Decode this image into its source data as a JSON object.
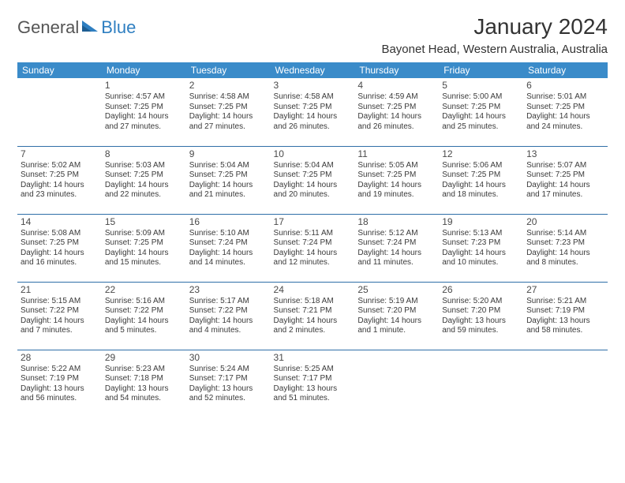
{
  "brand": {
    "part1": "General",
    "part2": "Blue"
  },
  "header": {
    "month_title": "January 2024",
    "location": "Bayonet Head, Western Australia, Australia"
  },
  "colors": {
    "header_bg": "#3a8bc9",
    "header_text": "#ffffff",
    "row_divider": "#2f6fa8",
    "body_text": "#3a3a3a",
    "brand_accent": "#2f7fc1"
  },
  "day_headers": [
    "Sunday",
    "Monday",
    "Tuesday",
    "Wednesday",
    "Thursday",
    "Friday",
    "Saturday"
  ],
  "weeks": [
    [
      null,
      {
        "n": "1",
        "sr": "Sunrise: 4:57 AM",
        "ss": "Sunset: 7:25 PM",
        "dl": "Daylight: 14 hours and 27 minutes."
      },
      {
        "n": "2",
        "sr": "Sunrise: 4:58 AM",
        "ss": "Sunset: 7:25 PM",
        "dl": "Daylight: 14 hours and 27 minutes."
      },
      {
        "n": "3",
        "sr": "Sunrise: 4:58 AM",
        "ss": "Sunset: 7:25 PM",
        "dl": "Daylight: 14 hours and 26 minutes."
      },
      {
        "n": "4",
        "sr": "Sunrise: 4:59 AM",
        "ss": "Sunset: 7:25 PM",
        "dl": "Daylight: 14 hours and 26 minutes."
      },
      {
        "n": "5",
        "sr": "Sunrise: 5:00 AM",
        "ss": "Sunset: 7:25 PM",
        "dl": "Daylight: 14 hours and 25 minutes."
      },
      {
        "n": "6",
        "sr": "Sunrise: 5:01 AM",
        "ss": "Sunset: 7:25 PM",
        "dl": "Daylight: 14 hours and 24 minutes."
      }
    ],
    [
      {
        "n": "7",
        "sr": "Sunrise: 5:02 AM",
        "ss": "Sunset: 7:25 PM",
        "dl": "Daylight: 14 hours and 23 minutes."
      },
      {
        "n": "8",
        "sr": "Sunrise: 5:03 AM",
        "ss": "Sunset: 7:25 PM",
        "dl": "Daylight: 14 hours and 22 minutes."
      },
      {
        "n": "9",
        "sr": "Sunrise: 5:04 AM",
        "ss": "Sunset: 7:25 PM",
        "dl": "Daylight: 14 hours and 21 minutes."
      },
      {
        "n": "10",
        "sr": "Sunrise: 5:04 AM",
        "ss": "Sunset: 7:25 PM",
        "dl": "Daylight: 14 hours and 20 minutes."
      },
      {
        "n": "11",
        "sr": "Sunrise: 5:05 AM",
        "ss": "Sunset: 7:25 PM",
        "dl": "Daylight: 14 hours and 19 minutes."
      },
      {
        "n": "12",
        "sr": "Sunrise: 5:06 AM",
        "ss": "Sunset: 7:25 PM",
        "dl": "Daylight: 14 hours and 18 minutes."
      },
      {
        "n": "13",
        "sr": "Sunrise: 5:07 AM",
        "ss": "Sunset: 7:25 PM",
        "dl": "Daylight: 14 hours and 17 minutes."
      }
    ],
    [
      {
        "n": "14",
        "sr": "Sunrise: 5:08 AM",
        "ss": "Sunset: 7:25 PM",
        "dl": "Daylight: 14 hours and 16 minutes."
      },
      {
        "n": "15",
        "sr": "Sunrise: 5:09 AM",
        "ss": "Sunset: 7:25 PM",
        "dl": "Daylight: 14 hours and 15 minutes."
      },
      {
        "n": "16",
        "sr": "Sunrise: 5:10 AM",
        "ss": "Sunset: 7:24 PM",
        "dl": "Daylight: 14 hours and 14 minutes."
      },
      {
        "n": "17",
        "sr": "Sunrise: 5:11 AM",
        "ss": "Sunset: 7:24 PM",
        "dl": "Daylight: 14 hours and 12 minutes."
      },
      {
        "n": "18",
        "sr": "Sunrise: 5:12 AM",
        "ss": "Sunset: 7:24 PM",
        "dl": "Daylight: 14 hours and 11 minutes."
      },
      {
        "n": "19",
        "sr": "Sunrise: 5:13 AM",
        "ss": "Sunset: 7:23 PM",
        "dl": "Daylight: 14 hours and 10 minutes."
      },
      {
        "n": "20",
        "sr": "Sunrise: 5:14 AM",
        "ss": "Sunset: 7:23 PM",
        "dl": "Daylight: 14 hours and 8 minutes."
      }
    ],
    [
      {
        "n": "21",
        "sr": "Sunrise: 5:15 AM",
        "ss": "Sunset: 7:22 PM",
        "dl": "Daylight: 14 hours and 7 minutes."
      },
      {
        "n": "22",
        "sr": "Sunrise: 5:16 AM",
        "ss": "Sunset: 7:22 PM",
        "dl": "Daylight: 14 hours and 5 minutes."
      },
      {
        "n": "23",
        "sr": "Sunrise: 5:17 AM",
        "ss": "Sunset: 7:22 PM",
        "dl": "Daylight: 14 hours and 4 minutes."
      },
      {
        "n": "24",
        "sr": "Sunrise: 5:18 AM",
        "ss": "Sunset: 7:21 PM",
        "dl": "Daylight: 14 hours and 2 minutes."
      },
      {
        "n": "25",
        "sr": "Sunrise: 5:19 AM",
        "ss": "Sunset: 7:20 PM",
        "dl": "Daylight: 14 hours and 1 minute."
      },
      {
        "n": "26",
        "sr": "Sunrise: 5:20 AM",
        "ss": "Sunset: 7:20 PM",
        "dl": "Daylight: 13 hours and 59 minutes."
      },
      {
        "n": "27",
        "sr": "Sunrise: 5:21 AM",
        "ss": "Sunset: 7:19 PM",
        "dl": "Daylight: 13 hours and 58 minutes."
      }
    ],
    [
      {
        "n": "28",
        "sr": "Sunrise: 5:22 AM",
        "ss": "Sunset: 7:19 PM",
        "dl": "Daylight: 13 hours and 56 minutes."
      },
      {
        "n": "29",
        "sr": "Sunrise: 5:23 AM",
        "ss": "Sunset: 7:18 PM",
        "dl": "Daylight: 13 hours and 54 minutes."
      },
      {
        "n": "30",
        "sr": "Sunrise: 5:24 AM",
        "ss": "Sunset: 7:17 PM",
        "dl": "Daylight: 13 hours and 52 minutes."
      },
      {
        "n": "31",
        "sr": "Sunrise: 5:25 AM",
        "ss": "Sunset: 7:17 PM",
        "dl": "Daylight: 13 hours and 51 minutes."
      },
      null,
      null,
      null
    ]
  ]
}
